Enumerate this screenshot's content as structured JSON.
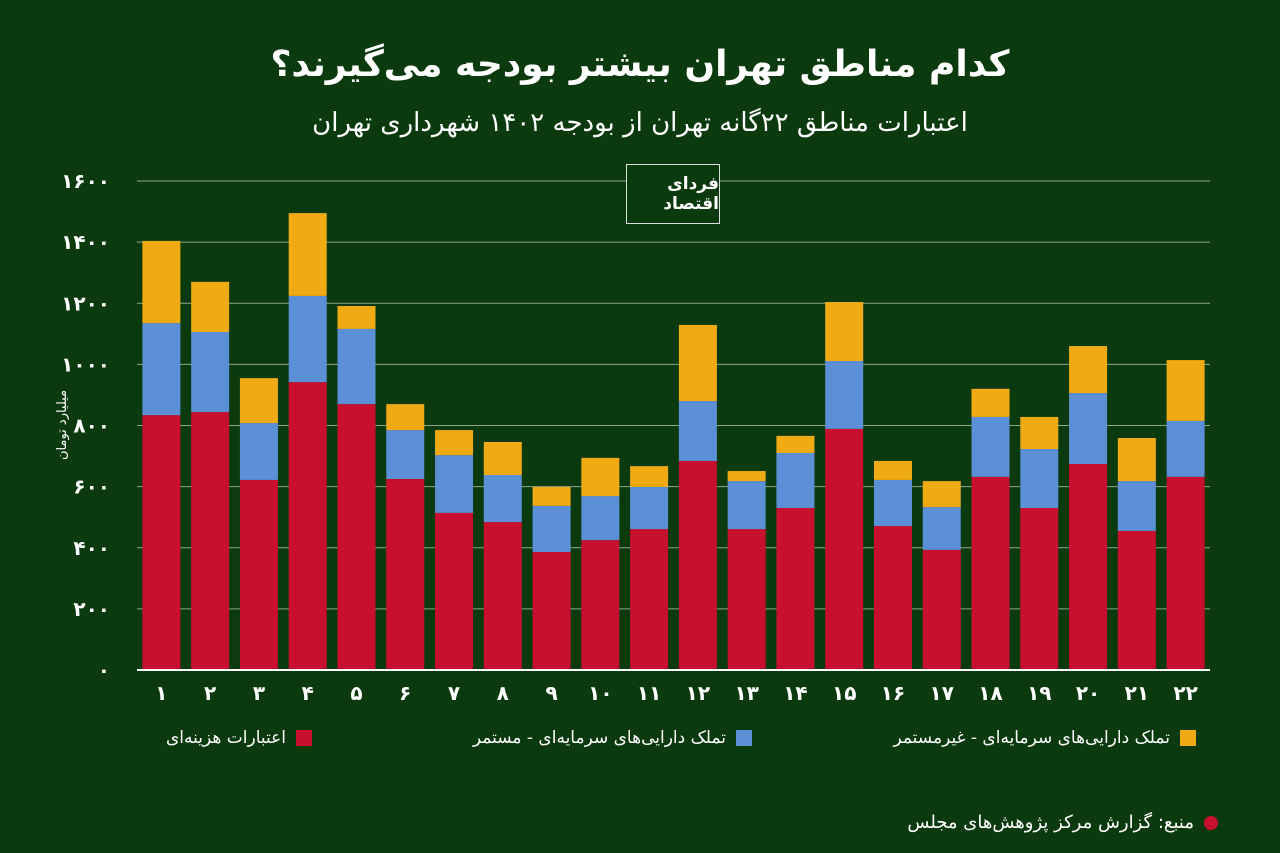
{
  "title": "کدام مناطق تهران بیشتر بودجه می‌گیرند؟",
  "subtitle": "اعتبارات مناطق ۲۲گانه تهران از بودجه ۱۴۰۲ شهرداری تهران",
  "logo_text": "فردای اقتصاد",
  "source": "منبع: گزارش مرکز پژوهش‌های مجلس",
  "colors": {
    "background": "#0c3a0f",
    "red": "#c8102e",
    "blue": "#5b8fd6",
    "yellow": "#f0ab14"
  },
  "chart_data": {
    "type": "bar",
    "stacked": true,
    "title": "کدام مناطق تهران بیشتر بودجه می‌گیرند؟",
    "ylabel": "میلیارد تومان",
    "xlabel": "",
    "ylim": [
      0,
      1600
    ],
    "yticks": [
      0,
      200,
      400,
      600,
      800,
      1000,
      1200,
      1400,
      1600
    ],
    "ytick_labels": [
      "۰",
      "۲۰۰",
      "۴۰۰",
      "۶۰۰",
      "۸۰۰",
      "۱۰۰۰",
      "۱۲۰۰",
      "۱۴۰۰",
      "۱۶۰۰"
    ],
    "categories": [
      "۱",
      "۲",
      "۳",
      "۴",
      "۵",
      "۶",
      "۷",
      "۸",
      "۹",
      "۱۰",
      "۱۱",
      "۱۲",
      "۱۳",
      "۱۴",
      "۱۵",
      "۱۶",
      "۱۷",
      "۱۸",
      "۱۹",
      "۲۰",
      "۲۱",
      "۲۲"
    ],
    "grid": true,
    "legend_position": "bottom",
    "series": [
      {
        "name": "اعتبارات هزینه‌ای",
        "color": "#c8102e",
        "values": [
          834,
          844,
          622,
          942,
          870,
          625,
          514,
          484,
          386,
          425,
          461,
          684,
          461,
          530,
          789,
          471,
          393,
          632,
          530,
          674,
          455,
          632
        ]
      },
      {
        "name": "تملک دارایی‌های سرمایه‌ای - مستمر",
        "color": "#5b8fd6",
        "values": [
          301,
          262,
          186,
          282,
          246,
          160,
          189,
          154,
          151,
          144,
          138,
          196,
          157,
          180,
          222,
          151,
          140,
          196,
          193,
          232,
          163,
          183
        ]
      },
      {
        "name": "تملک دارایی‌های سرمایه‌ای - غیرمستمر",
        "color": "#f0ab14",
        "values": [
          269,
          164,
          147,
          271,
          75,
          85,
          82,
          108,
          62,
          125,
          68,
          249,
          33,
          56,
          193,
          62,
          85,
          92,
          105,
          154,
          141,
          199
        ]
      }
    ]
  }
}
